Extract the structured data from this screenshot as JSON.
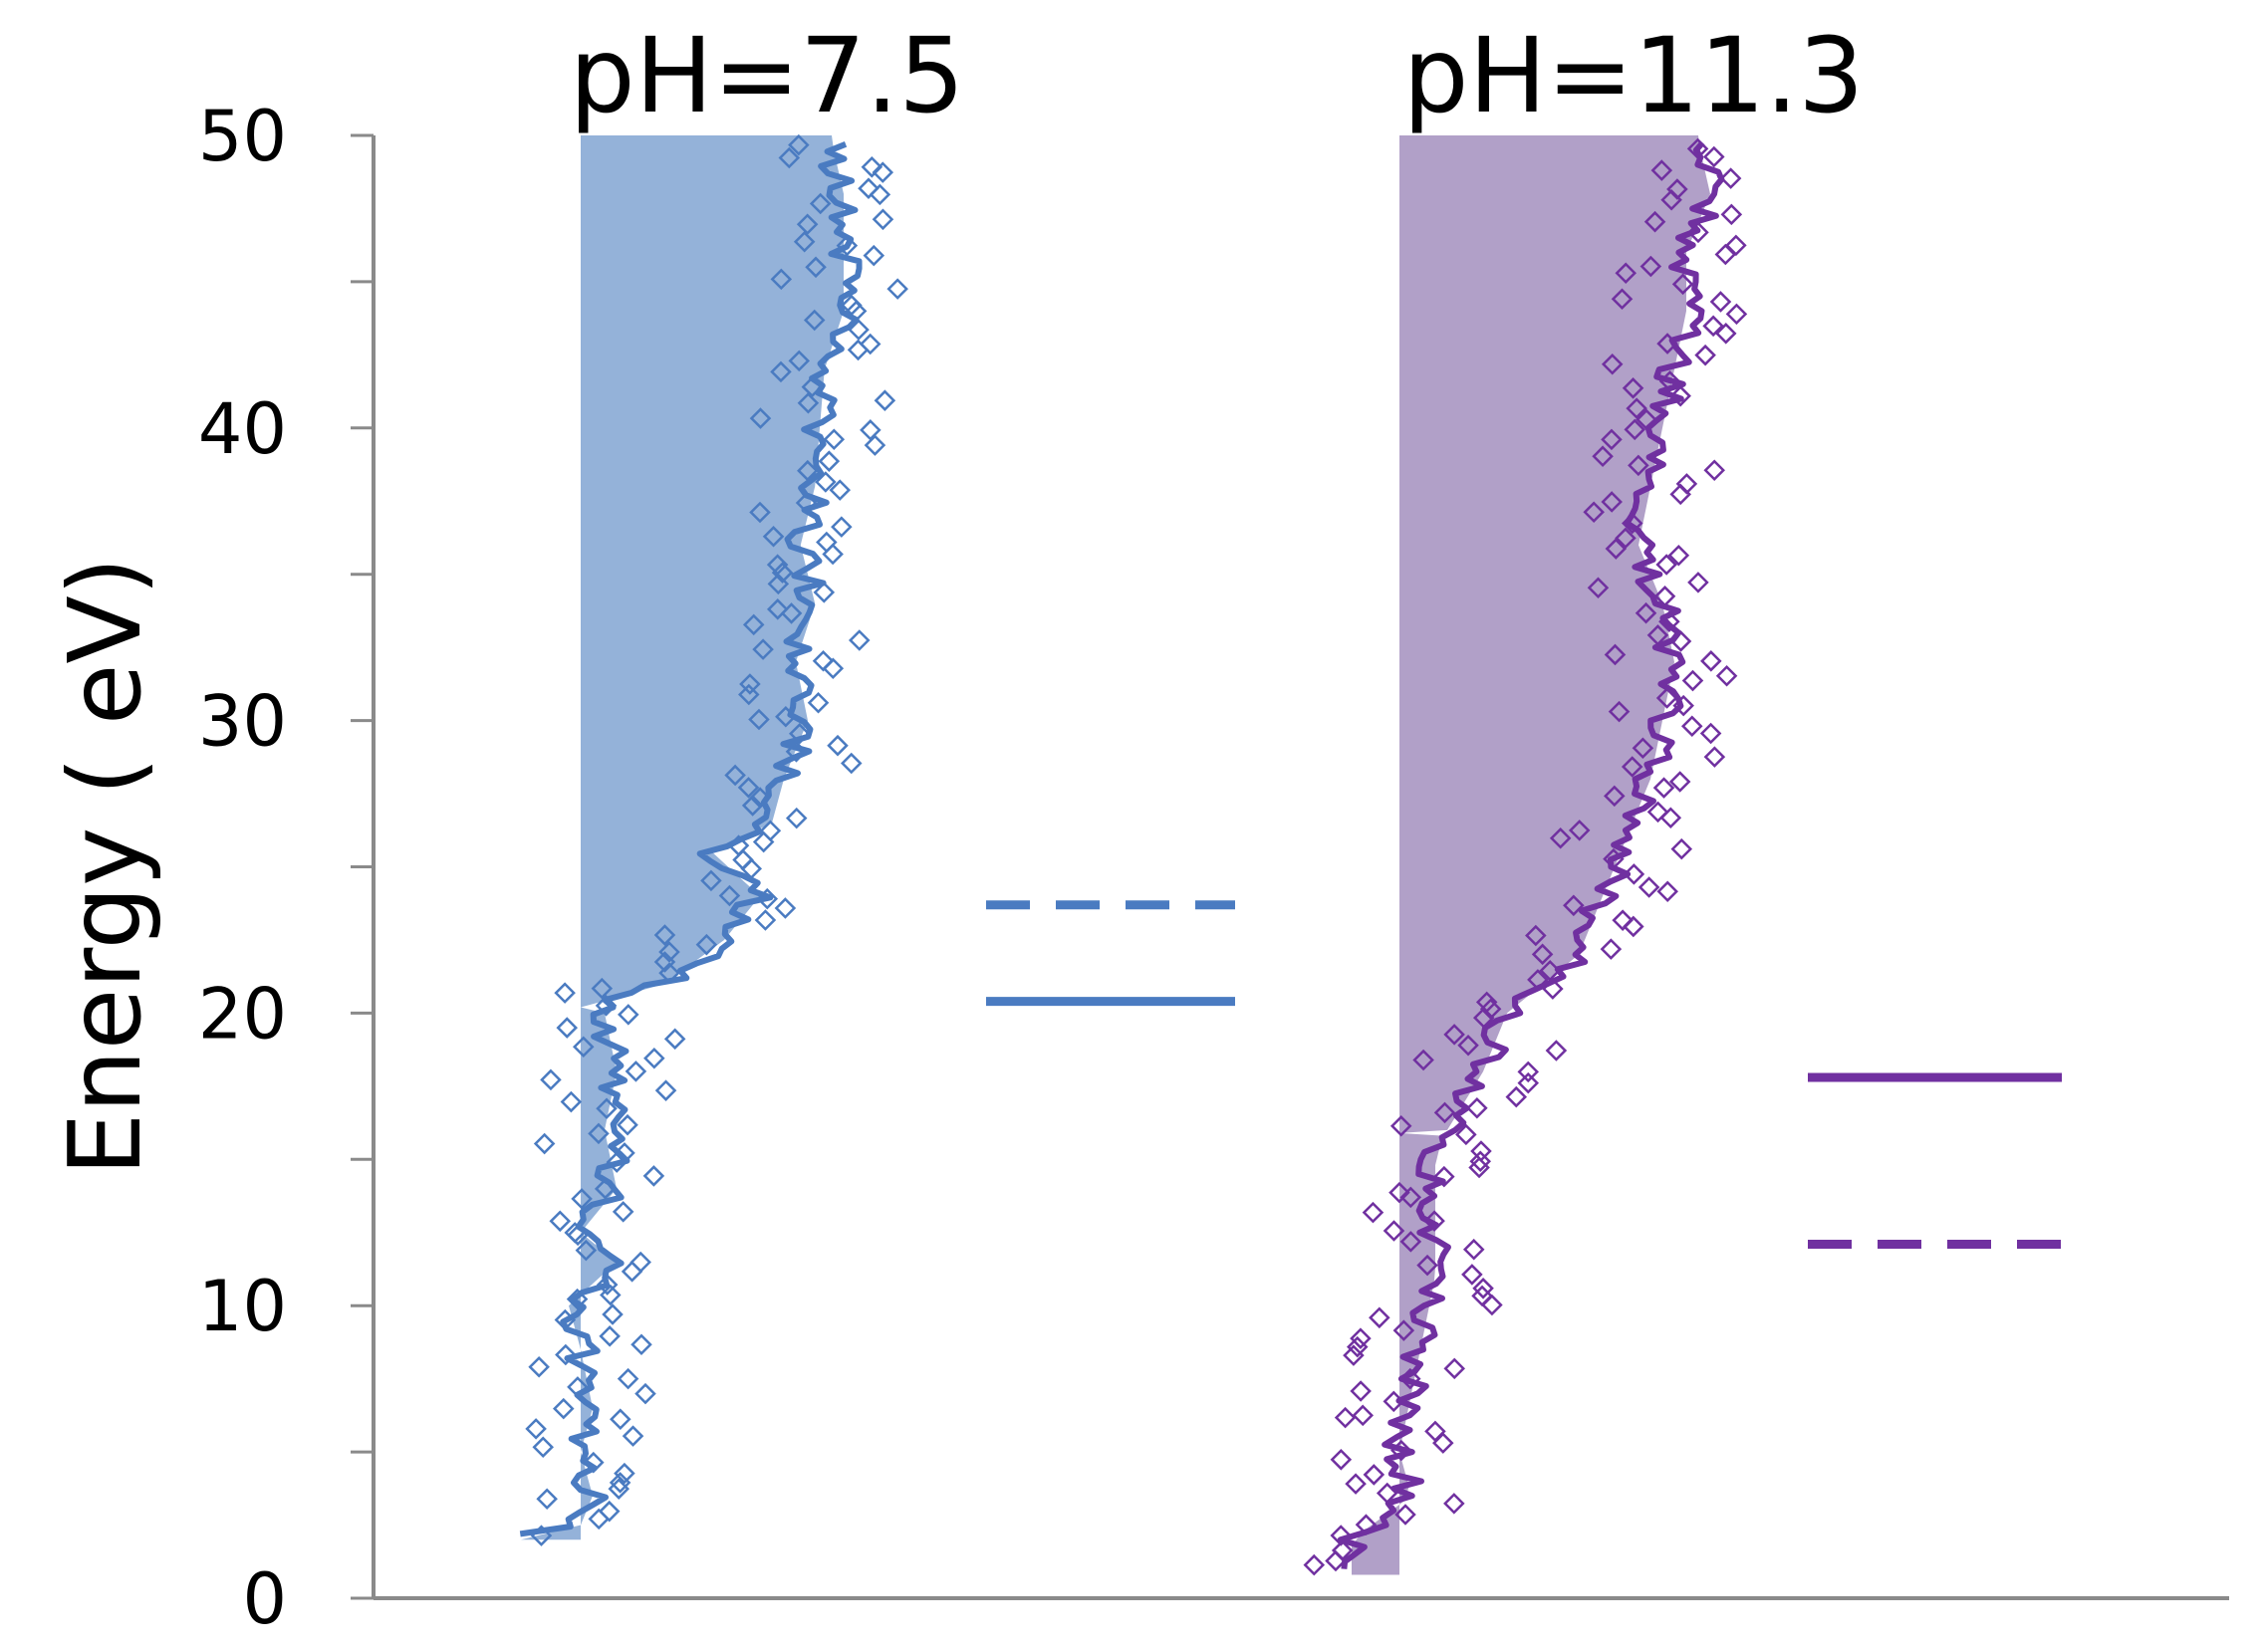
{
  "chart_data": {
    "type": "scatter",
    "ylabel": "Energy ( eV)",
    "xlabel": "",
    "ylim": [
      0,
      50
    ],
    "y_ticks": [
      0,
      10,
      20,
      30,
      40,
      50
    ],
    "y_minor_step": 5,
    "grid": false,
    "legend": "none",
    "panels": [
      {
        "title": "pH=7.5",
        "color": "#4a7bc1",
        "fill_color": "#94b2d9",
        "band_bottom": 2.0,
        "band_top": 50,
        "band_step": 20.2,
        "profile": [
          [
            2.2,
            -0.25
          ],
          [
            2.5,
            0.0
          ],
          [
            3.5,
            0.05
          ],
          [
            5,
            0.0
          ],
          [
            6.5,
            0.05
          ],
          [
            8.5,
            0.0
          ],
          [
            10,
            -0.05
          ],
          [
            11.5,
            0.15
          ],
          [
            12.5,
            0.0
          ],
          [
            14,
            0.15
          ],
          [
            16,
            0.1
          ],
          [
            18,
            0.15
          ],
          [
            20,
            0.1
          ],
          [
            20.3,
            0.05
          ],
          [
            21,
            0.35
          ],
          [
            22.5,
            0.6
          ],
          [
            24,
            0.75
          ],
          [
            25.5,
            0.55
          ],
          [
            26.5,
            0.8
          ],
          [
            28,
            0.85
          ],
          [
            30,
            0.95
          ],
          [
            32,
            0.9
          ],
          [
            34,
            0.98
          ],
          [
            36,
            0.92
          ],
          [
            38,
            0.98
          ],
          [
            40,
            1.0
          ],
          [
            42,
            1.02
          ],
          [
            44,
            1.1
          ],
          [
            46,
            1.1
          ],
          [
            48,
            1.1
          ],
          [
            49.8,
            1.05
          ]
        ],
        "levels": [
          {
            "energy": 23.7,
            "style": "dashed"
          },
          {
            "energy": 20.4,
            "style": "solid"
          }
        ]
      },
      {
        "title": "pH=11.3",
        "color": "#7030a0",
        "fill_color": "#b1a0c8",
        "band_bottom": 0.8,
        "band_top": 50,
        "band_step": 15.9,
        "profile": [
          [
            1.0,
            -0.2
          ],
          [
            2.0,
            -0.2
          ],
          [
            3.5,
            0.05
          ],
          [
            5,
            0.0
          ],
          [
            7,
            0.05
          ],
          [
            9,
            0.1
          ],
          [
            11,
            0.15
          ],
          [
            13,
            0.15
          ],
          [
            15,
            0.15
          ],
          [
            16,
            0.2
          ],
          [
            18,
            0.35
          ],
          [
            20,
            0.45
          ],
          [
            22,
            0.75
          ],
          [
            24,
            0.85
          ],
          [
            26,
            0.95
          ],
          [
            28,
            1.05
          ],
          [
            30,
            1.1
          ],
          [
            32,
            1.15
          ],
          [
            34,
            1.1
          ],
          [
            36,
            1.0
          ],
          [
            38,
            1.05
          ],
          [
            40,
            1.1
          ],
          [
            42,
            1.15
          ],
          [
            44,
            1.2
          ],
          [
            46,
            1.2
          ],
          [
            48,
            1.3
          ],
          [
            49.8,
            1.25
          ]
        ],
        "levels": [
          {
            "energy": 17.8,
            "style": "solid"
          },
          {
            "energy": 12.1,
            "style": "dashed"
          }
        ]
      }
    ]
  }
}
